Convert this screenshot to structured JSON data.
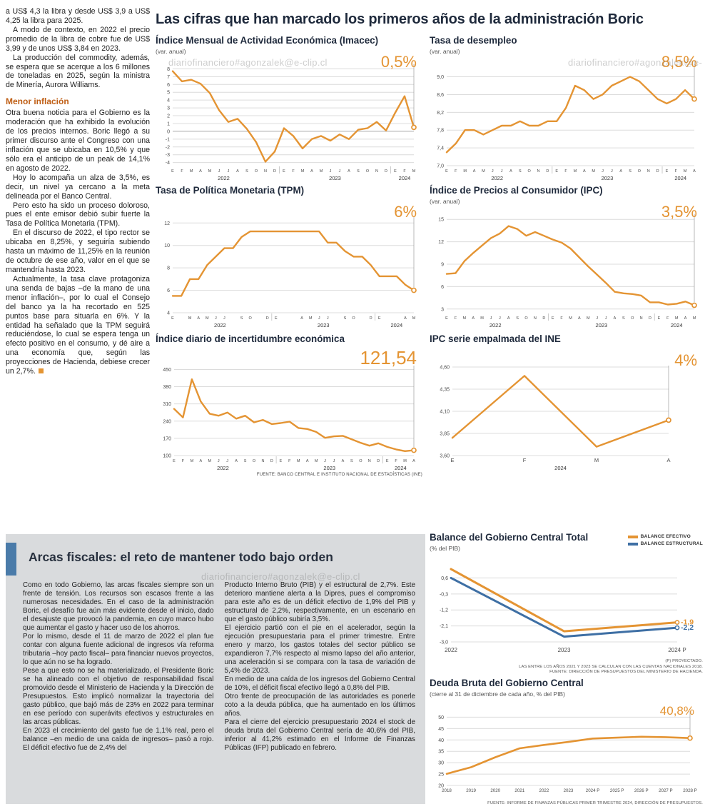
{
  "page": {
    "watermark": "diariofinanciero#agonzalek@e-clip.cl"
  },
  "colors": {
    "orange": "#E49433",
    "blue": "#3E6FA4",
    "navy": "#1F2A3C",
    "subhead_orange": "#BF5E14",
    "gray_box": "#D9DBDD",
    "blue_bar": "#4A7BA9"
  },
  "left_article": {
    "intro": [
      "a US$ 4,3 la libra y desde US$ 3,9 a US$ 4,25 la libra para 2025.",
      "A modo de contexto, en 2022 el precio promedio de la libra de cobre fue de US$ 3,99 y de unos US$ 3,84 en 2023.",
      "La producción del commodity, además, se espera que se acerque a los 6 millones de toneladas en 2025, según la ministra de Minería, Aurora Williams."
    ],
    "subhead": "Menor inflación",
    "body": [
      "Otra buena noticia para el Gobierno es la moderación que ha exhibido la evolución de los precios internos. Boric llegó a su primer discurso ante el Congreso con una inflación que se ubicaba en 10,5% y que sólo era el anticipo de un peak de 14,1% en agosto de 2022.",
      "Hoy lo acompaña un alza de 3,5%, es decir, un nivel ya cercano a la meta delineada por el Banco Central.",
      "Pero esto ha sido un proceso doloroso, pues el ente emisor debió subir fuerte la Tasa de Política Monetaria (TPM).",
      "En el discurso de 2022, el tipo rector se ubicaba en 8,25%, y seguiría subiendo hasta un máximo de 11,25% en la reunión de octubre de ese año, valor en el que se mantendría hasta 2023.",
      "Actualmente, la tasa clave protagoniza una senda de bajas –de la mano de una menor inflación–, por lo cual el Consejo del banco ya la ha recortado en 525 puntos base para situarla en 6%. Y la entidad ha señalado que la TPM seguirá reduciéndose, lo cual se espera tenga un efecto positivo en el consumo, y dé aire a una economía que, según las proyecciones de Hacienda, debiese crecer un 2,7%."
    ]
  },
  "main": {
    "title": "Las cifras que han marcado los primeros años de la administración Boric",
    "source_note": "FUENTE: BANCO CENTRAL E INSTITUTO NACIONAL DE ESTADÍSTICAS (INE)"
  },
  "chart_data": [
    {
      "id": "imacec",
      "type": "line",
      "title": "Índice Mensual de Actividad Económica (Imacec)",
      "subtitle": "(var. anual)",
      "big_label": "0,5%",
      "color": "#E49433",
      "lw": 2.4,
      "m": {
        "l": 24,
        "r": 12,
        "t": 6,
        "b": 22
      },
      "xfs": 5.5,
      "ylim": [
        -4.4,
        8.4
      ],
      "yticks": [
        8,
        7,
        6,
        5,
        4,
        3,
        2,
        1,
        0,
        -1,
        -2,
        -3,
        -4
      ],
      "ytick_labels": [
        "8",
        "7",
        "6",
        "5",
        "4",
        "3",
        "2",
        "1",
        "0",
        "-1",
        "-2",
        "-3",
        "-4"
      ],
      "baseline": 0,
      "x_labels": [
        "E",
        "F",
        "M",
        "A",
        "M",
        "J",
        "J",
        "A",
        "S",
        "O",
        "N",
        "D",
        "E",
        "F",
        "M",
        "A",
        "M",
        "J",
        "J",
        "A",
        "S",
        "O",
        "N",
        "D",
        "E",
        "F",
        "M"
      ],
      "year_groups": [
        {
          "label": "2022",
          "start": 0,
          "end": 11
        },
        {
          "label": "2023",
          "start": 12,
          "end": 23
        },
        {
          "label": "2024",
          "start": 24,
          "end": 26
        }
      ],
      "values": [
        7.7,
        6.4,
        6.6,
        6.1,
        4.9,
        2.7,
        1.2,
        1.6,
        0.3,
        -1.4,
        -3.9,
        -2.6,
        0.4,
        -0.6,
        -2.2,
        -1.0,
        -0.6,
        -1.2,
        -0.4,
        -1.0,
        0.2,
        0.4,
        1.2,
        0.1,
        2.4,
        4.5,
        0.5
      ],
      "end_marker": true
    },
    {
      "id": "desempleo",
      "type": "line",
      "title": "Tasa de desempleo",
      "subtitle": "(var. anual)",
      "big_label": "8,5%",
      "color": "#E49433",
      "lw": 2.4,
      "m": {
        "l": 24,
        "r": 12,
        "t": 6,
        "b": 22
      },
      "xfs": 5.5,
      "ylim": [
        7.0,
        9.25
      ],
      "yticks": [
        9.0,
        8.6,
        8.2,
        7.8,
        7.4,
        7.0
      ],
      "ytick_labels": [
        "9,0",
        "8,6",
        "8,2",
        "7,8",
        "7,4",
        "7,0"
      ],
      "x_labels": [
        "E",
        "F",
        "M",
        "A",
        "M",
        "J",
        "J",
        "A",
        "S",
        "O",
        "N",
        "D",
        "E",
        "F",
        "M",
        "A",
        "M",
        "J",
        "J",
        "A",
        "S",
        "O",
        "N",
        "D",
        "E",
        "F",
        "M",
        "A"
      ],
      "year_groups": [
        {
          "label": "2022",
          "start": 0,
          "end": 11
        },
        {
          "label": "2023",
          "start": 12,
          "end": 23
        },
        {
          "label": "2024",
          "start": 24,
          "end": 27
        }
      ],
      "values": [
        7.3,
        7.5,
        7.8,
        7.8,
        7.7,
        7.8,
        7.9,
        7.9,
        8.0,
        7.9,
        7.9,
        8.0,
        8.0,
        8.3,
        8.8,
        8.7,
        8.5,
        8.6,
        8.8,
        8.9,
        9.0,
        8.9,
        8.7,
        8.5,
        8.4,
        8.5,
        8.7,
        8.5
      ],
      "end_marker": true
    },
    {
      "id": "tpm",
      "type": "line",
      "title": "Tasa de Política Monetaria (TPM)",
      "subtitle": "",
      "big_label": "6%",
      "color": "#E49433",
      "lw": 2.4,
      "m": {
        "l": 24,
        "r": 12,
        "t": 10,
        "b": 22
      },
      "xfs": 5.5,
      "ylim": [
        4,
        12.4
      ],
      "yticks": [
        12,
        10,
        8,
        6,
        4
      ],
      "ytick_labels": [
        "12",
        "10",
        "8",
        "6",
        "4"
      ],
      "x_labels": [
        "E",
        "",
        "M",
        "A",
        "M",
        "J",
        "J",
        "",
        "S",
        "O",
        "",
        "D",
        "E",
        "",
        "",
        "A",
        "M",
        "J",
        "J",
        "",
        "S",
        "O",
        "",
        "D",
        "E",
        "",
        "",
        "A",
        "M"
      ],
      "year_groups": [
        {
          "label": "2022",
          "start": 0,
          "end": 11
        },
        {
          "label": "2023",
          "start": 12,
          "end": 23
        },
        {
          "label": "2024",
          "start": 24,
          "end": 28
        }
      ],
      "values": [
        5.5,
        5.5,
        7.0,
        7.0,
        8.25,
        9.0,
        9.75,
        9.75,
        10.75,
        11.25,
        11.25,
        11.25,
        11.25,
        11.25,
        11.25,
        11.25,
        11.25,
        11.25,
        10.25,
        10.25,
        9.5,
        9.0,
        9.0,
        8.25,
        7.25,
        7.25,
        7.25,
        6.5,
        6.0
      ],
      "end_marker": true
    },
    {
      "id": "ipc",
      "type": "line",
      "title": "Índice de Precios al Consumidor (IPC)",
      "subtitle": "(var. anual)",
      "big_label": "3,5%",
      "color": "#E49433",
      "lw": 2.4,
      "m": {
        "l": 24,
        "r": 12,
        "t": 6,
        "b": 22
      },
      "xfs": 5.5,
      "ylim": [
        2.5,
        15.5
      ],
      "yticks": [
        15,
        12,
        9,
        6,
        3
      ],
      "ytick_labels": [
        "15",
        "12",
        "9",
        "6",
        "3"
      ],
      "x_labels": [
        "E",
        "F",
        "M",
        "A",
        "M",
        "J",
        "J",
        "A",
        "S",
        "O",
        "N",
        "D",
        "E",
        "F",
        "M",
        "A",
        "M",
        "J",
        "J",
        "A",
        "S",
        "O",
        "N",
        "D",
        "E",
        "F",
        "M",
        "A",
        "M"
      ],
      "year_groups": [
        {
          "label": "2022",
          "start": 0,
          "end": 11
        },
        {
          "label": "2023",
          "start": 12,
          "end": 23
        },
        {
          "label": "2024",
          "start": 24,
          "end": 28
        }
      ],
      "values": [
        7.7,
        7.8,
        9.4,
        10.5,
        11.5,
        12.5,
        13.1,
        14.1,
        13.7,
        12.8,
        13.3,
        12.8,
        12.3,
        11.9,
        11.1,
        9.9,
        8.7,
        7.6,
        6.5,
        5.3,
        5.1,
        5.0,
        4.8,
        3.9,
        3.9,
        3.6,
        3.7,
        4.0,
        3.5
      ],
      "end_marker": true
    },
    {
      "id": "incertidumbre",
      "type": "line",
      "title": "Índice diario de incertidumbre económica",
      "subtitle": "",
      "big_label": "121,54",
      "color": "#E49433",
      "lw": 2.4,
      "m": {
        "l": 26,
        "r": 12,
        "t": 10,
        "b": 22
      },
      "xfs": 5.5,
      "ylim": [
        100,
        460
      ],
      "yticks": [
        450,
        380,
        310,
        240,
        170,
        100
      ],
      "ytick_labels": [
        "450",
        "380",
        "310",
        "240",
        "170",
        "100"
      ],
      "x_labels": [
        "E",
        "F",
        "M",
        "A",
        "M",
        "J",
        "J",
        "A",
        "S",
        "O",
        "N",
        "D",
        "E",
        "F",
        "M",
        "A",
        "M",
        "J",
        "J",
        "A",
        "S",
        "O",
        "N",
        "D",
        "E",
        "F",
        "M",
        "A"
      ],
      "year_groups": [
        {
          "label": "2022",
          "start": 0,
          "end": 11
        },
        {
          "label": "2023",
          "start": 12,
          "end": 23
        },
        {
          "label": "2024",
          "start": 24,
          "end": 27
        }
      ],
      "values": [
        290,
        255,
        410,
        320,
        270,
        262,
        275,
        250,
        262,
        235,
        245,
        228,
        232,
        238,
        212,
        208,
        196,
        172,
        178,
        180,
        166,
        152,
        140,
        150,
        135,
        125,
        118,
        121.54
      ],
      "end_marker": true
    },
    {
      "id": "ipc-ine",
      "type": "line",
      "title": "IPC serie empalmada del INE",
      "subtitle": "",
      "big_label": "4%",
      "color": "#E49433",
      "lw": 2.4,
      "m": {
        "l": 32,
        "r": 48,
        "t": 10,
        "b": 22
      },
      "xfs": 7.5,
      "ylim": [
        3.6,
        4.6
      ],
      "yticks": [
        4.6,
        4.35,
        4.1,
        3.85,
        3.6
      ],
      "ytick_labels": [
        "4,60",
        "4,35",
        "4,10",
        "3,85",
        "3,60"
      ],
      "x_labels": [
        "E",
        "F",
        "M",
        "A"
      ],
      "year_groups": [
        {
          "label": "2024",
          "start": 0,
          "end": 3
        }
      ],
      "values": [
        3.8,
        4.5,
        3.7,
        4.0
      ],
      "end_marker": true
    },
    {
      "id": "balance",
      "type": "line",
      "title": "Balance del Gobierno Central Total",
      "subtitle": "(% del PIB)",
      "lw": 3,
      "m": {
        "l": 30,
        "r": 36,
        "t": 6,
        "b": 16
      },
      "xfs": 8,
      "ylim": [
        -3.2,
        1.3
      ],
      "yticks": [
        0.6,
        -0.3,
        -1.2,
        -2.1,
        -3.0
      ],
      "ytick_labels": [
        "0,6",
        "-0,3",
        "-1,2",
        "-2,1",
        "-3,0"
      ],
      "x_labels": [
        "2022",
        "2023",
        "2024 P"
      ],
      "legend": [
        {
          "label": "BALANCE EFECTIVO",
          "color": "#E49433"
        },
        {
          "label": "BALANCE ESTRUCTURAL",
          "color": "#3E6FA4"
        }
      ],
      "series": [
        {
          "name": "BALANCE EFECTIVO",
          "color": "#E49433",
          "values": [
            1.1,
            -2.4,
            -1.9
          ],
          "end_label": "-1,9"
        },
        {
          "name": "BALANCE ESTRUCTURAL",
          "color": "#3E6FA4",
          "values": [
            0.6,
            -2.7,
            -2.2
          ],
          "end_label": "-2,2"
        }
      ],
      "notes": [
        "(P) PROYECTADO.",
        "LAS ENTRE LOS AÑOS 2021 Y 2023 SE CALCULAN  CON LAS CUENTAS NACIONALES 2018.",
        "FUENTE: DIRECCIÓN DE PRESUPUESTOS DEL MINISTERIO DE HACIENDA."
      ]
    },
    {
      "id": "deuda",
      "type": "line",
      "title": "Deuda Bruta del Gobierno Central",
      "subtitle": "(cierre al 31 de diciembre de cada año, % del PIB)",
      "big_label": "40,8%",
      "color": "#E49433",
      "lw": 2.6,
      "m": {
        "l": 24,
        "r": 18,
        "t": 8,
        "b": 16
      },
      "xfs": 6.2,
      "ylim": [
        20,
        52
      ],
      "yticks": [
        50,
        45,
        40,
        35,
        30,
        25,
        20
      ],
      "ytick_labels": [
        "50",
        "45",
        "40",
        "35",
        "30",
        "25",
        "20"
      ],
      "x_labels": [
        "2018",
        "2019",
        "2020",
        "2021",
        "2022",
        "2023",
        "2024 P",
        "2025 P",
        "2026 P",
        "2027 P",
        "2028 P"
      ],
      "values": [
        25.1,
        28.0,
        32.4,
        36.3,
        37.8,
        39.1,
        40.6,
        41.0,
        41.4,
        41.2,
        40.8
      ],
      "end_marker": true,
      "source": "FUENTE: INFORME DE FINANZAS PÚBLICAS PRIMER TRIMESTRE 2024, DIRECCIÓN DE PRESUPUESTOS."
    }
  ],
  "fiscal": {
    "title": "Arcas fiscales: el reto de mantener todo bajo orden",
    "col1": [
      "Como en todo Gobierno, las arcas fiscales siempre son un frente de tensión. Los recursos son escasos frente a las numerosas necesidades. En el caso de la administración Boric, el desafío fue aún más evidente desde el inicio, dado el desajuste que provocó la pandemia, en cuyo marco hubo que aumentar el gasto y hacer uso de los ahorros.",
      "Por lo mismo, desde el 11 de marzo de 2022 el plan fue contar con alguna fuente adicional de ingresos vía reforma tributaria –hoy pacto fiscal– para financiar nuevos proyectos, lo que aún no se ha logrado.",
      "Pese a que esto no se ha materializado, el Presidente Boric se ha alineado con el objetivo de responsabilidad fiscal promovido desde el Ministerio de Hacienda y la Dirección de Presupuestos. Esto implicó normalizar la trayectoria del gasto público, que bajó más de 23% en 2022 para terminar en ese período con superávits efectivos y estructurales en las arcas públicas.",
      "En 2023 el crecimiento del gasto fue de 1,1% real, pero el balance –en medio de una caída de ingresos– pasó a rojo. El déficit efectivo fue de 2,4% del"
    ],
    "col2": [
      "Producto Interno Bruto (PIB) y el estructural de 2,7%. Este deterioro mantiene alerta a la Dipres, pues el compromiso para este año es de un déficit efectivo de 1,9% del PIB y estructural de 2,2%, respectivamente, en un escenario en que el gasto público subiría 3,5%.",
      "El ejercicio partió con el pie en el acelerador, según la ejecución presupuestaria para el primer trimestre. Entre enero y marzo, los gastos totales del sector público se expandieron 7,7% respecto al mismo lapso del año anterior, una aceleración si se compara con la tasa de variación de 5,4% de 2023.",
      "En medio de una caída de los ingresos del Gobierno Central de 10%, el déficit fiscal efectivo llegó a 0,8% del PIB.",
      "Otro frente de preocupación de las autoridades es ponerle coto a la deuda pública, que ha aumentado en los últimos años.",
      "Para el cierre del ejercicio presupuestario 2024 el stock de deuda bruta del Gobierno Central sería de 40,6% del PIB, inferior al 41,2% estimado en el Informe de Finanzas Públicas (IFP) publicado en febrero."
    ]
  }
}
